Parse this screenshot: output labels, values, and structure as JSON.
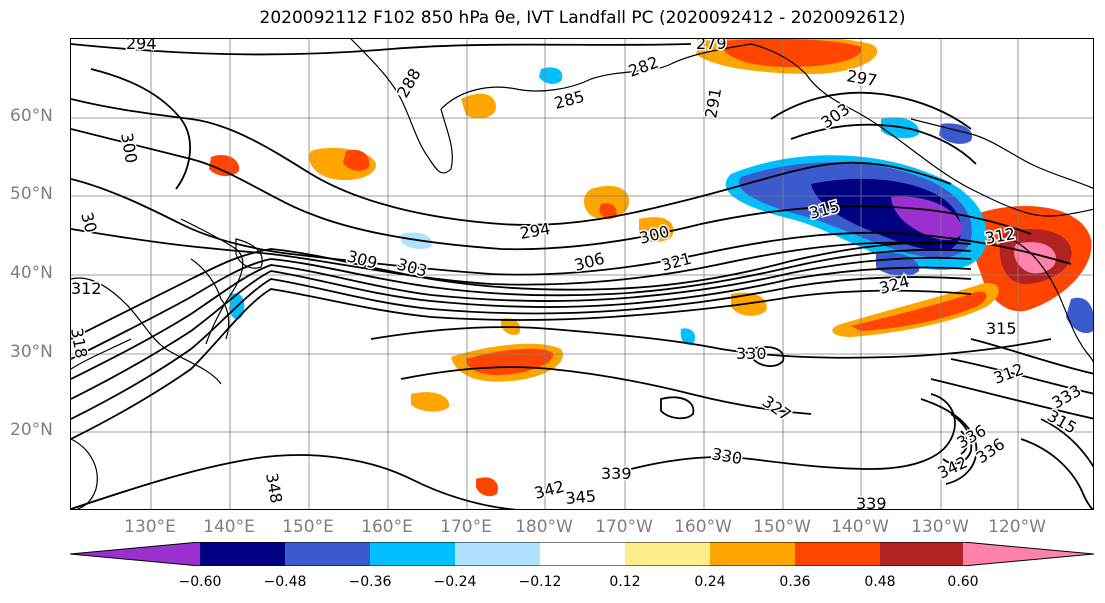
{
  "title": "2020092112 F102 850 hPa θe, IVT Landfall PC (2020092412 - 2020092612)",
  "map": {
    "lat_labels": [
      "60°N",
      "50°N",
      "40°N",
      "30°N",
      "20°N"
    ],
    "lon_labels": [
      "130°E",
      "140°E",
      "150°E",
      "160°E",
      "170°E",
      "180°W",
      "170°W",
      "160°W",
      "150°W",
      "140°W",
      "130°W",
      "120°W"
    ],
    "contour_labels": [
      "294",
      "300",
      "288",
      "282",
      "285",
      "279",
      "291",
      "297",
      "303",
      "315",
      "294",
      "300",
      "306",
      "321",
      "309",
      "303",
      "312",
      "324",
      "315",
      "312",
      "315",
      "330",
      "327",
      "333",
      "330",
      "336",
      "336",
      "342",
      "339",
      "339",
      "342",
      "345",
      "348",
      "312",
      "318",
      "30"
    ],
    "colors": {
      "land_outline": "#000000",
      "contour": "#000000",
      "gridline": "#7f7f7f"
    }
  },
  "colorbar": {
    "colors": [
      "#9b30d0",
      "#000080",
      "#3a5acd",
      "#00bfff",
      "#b0e2ff",
      "#ffffff",
      "#ffec8b",
      "#ffa500",
      "#ff4500",
      "#b22222",
      "#ff82ab"
    ],
    "ticks": [
      "−0.60",
      "−0.48",
      "−0.36",
      "−0.24",
      "−0.12",
      "0.12",
      "0.24",
      "0.36",
      "0.48",
      "0.60"
    ]
  }
}
